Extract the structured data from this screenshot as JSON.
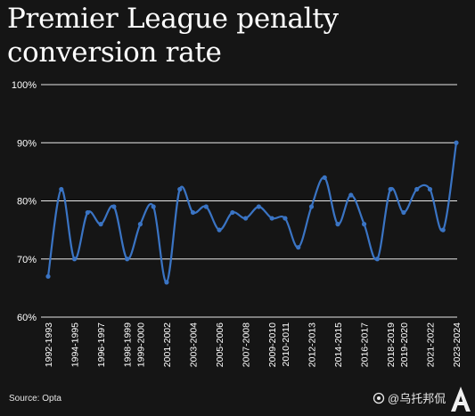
{
  "title": "Premier League penalty conversion rate",
  "source": "Source: Opta",
  "watermark": "@乌托邦侃",
  "colors": {
    "background": "#151515",
    "line": "#3a74c4",
    "grid": "#ffffff",
    "text": "#ffffff"
  },
  "chart_data": {
    "type": "line",
    "title": "Premier League penalty conversion rate",
    "xlabel": "",
    "ylabel": "",
    "ylim": [
      60,
      100
    ],
    "yticks": [
      60,
      70,
      80,
      90,
      100
    ],
    "ytick_labels": [
      "60%",
      "70%",
      "80%",
      "90%",
      "100%"
    ],
    "grid": "horizontal",
    "smooth": true,
    "x": [
      "1992-1993",
      "1993-1994",
      "1994-1995",
      "1995-1996",
      "1996-1997",
      "1997-1998",
      "1998-1999",
      "1999-2000",
      "2000-2001",
      "2001-2002",
      "2002-2003",
      "2003-2004",
      "2004-2005",
      "2005-2006",
      "2006-2007",
      "2007-2008",
      "2008-2009",
      "2009-2010",
      "2010-2011",
      "2011-2012",
      "2012-2013",
      "2013-2014",
      "2014-2015",
      "2015-2016",
      "2016-2017",
      "2017-2018",
      "2018-2019",
      "2019-2020",
      "2020-2021",
      "2021-2022",
      "2022-2023",
      "2023-2024"
    ],
    "xtick_labels": [
      "1992-1993",
      "",
      "1994-1995",
      "",
      "1996-1997",
      "",
      "1998-1999",
      "1999-2000",
      "",
      "2001-2002",
      "",
      "2003-2004",
      "",
      "2005-2006",
      "",
      "2007-2008",
      "",
      "2009-2010",
      "2010-2011",
      "",
      "2012-2013",
      "",
      "2014-2015",
      "",
      "2016-2017",
      "",
      "2018-2019",
      "2019-2020",
      "",
      "2021-2022",
      "",
      "2023-2024"
    ],
    "series": [
      {
        "values": [
          67,
          82,
          70,
          78,
          76,
          79,
          70,
          76,
          79,
          66,
          82,
          78,
          79,
          75,
          78,
          77,
          79,
          77,
          77,
          72,
          79,
          84,
          76,
          81,
          76,
          70,
          82,
          78,
          82,
          82,
          75,
          90
        ]
      }
    ]
  }
}
